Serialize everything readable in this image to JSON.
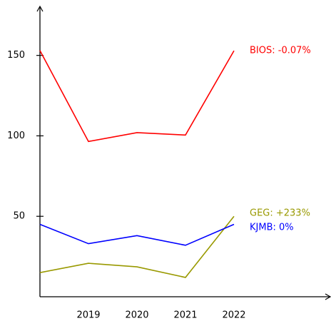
{
  "chart_data": {
    "type": "line",
    "categories": [
      null,
      "2019",
      "2020",
      "2021",
      "2022"
    ],
    "series": [
      {
        "name": "BIOS: -0.07%",
        "color": "#ff0000",
        "values": [
          153,
          96.5,
          102,
          100.5,
          152.9
        ]
      },
      {
        "name": "GEG: +233%",
        "color": "#999900",
        "values": [
          15,
          20.8,
          18.6,
          12,
          50
        ]
      },
      {
        "name": "KJMB: 0%",
        "color": "#0000ff",
        "values": [
          45,
          33,
          38,
          32,
          45
        ]
      }
    ],
    "ylim": [
      0,
      180
    ],
    "yticks": [
      50,
      100,
      150
    ]
  }
}
